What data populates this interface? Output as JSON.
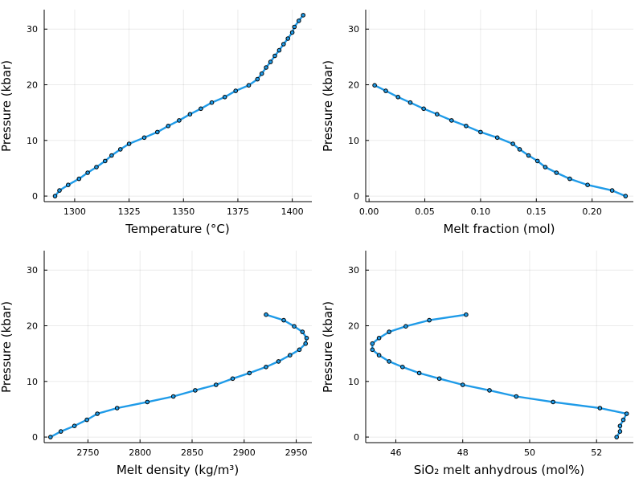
{
  "colors": {
    "series": "#1f9be8",
    "marker": "#000000"
  },
  "chart_data": [
    {
      "type": "line",
      "xlabel": "Temperature (°C)",
      "ylabel": "Pressure (kbar)",
      "xlim": [
        1286,
        1409
      ],
      "ylim": [
        -1,
        33.5
      ],
      "xticks": [
        1300,
        1325,
        1350,
        1375,
        1400
      ],
      "yticks": [
        0,
        10,
        20,
        30
      ],
      "grid": true,
      "points": [
        [
          1291,
          0
        ],
        [
          1293,
          1
        ],
        [
          1297,
          2
        ],
        [
          1302,
          3.1
        ],
        [
          1306,
          4.2
        ],
        [
          1310,
          5.2
        ],
        [
          1314,
          6.3
        ],
        [
          1317,
          7.3
        ],
        [
          1321,
          8.4
        ],
        [
          1325,
          9.4
        ],
        [
          1332,
          10.5
        ],
        [
          1338,
          11.5
        ],
        [
          1343,
          12.6
        ],
        [
          1348,
          13.6
        ],
        [
          1353,
          14.7
        ],
        [
          1358,
          15.7
        ],
        [
          1363,
          16.8
        ],
        [
          1369,
          17.8
        ],
        [
          1374,
          18.9
        ],
        [
          1380,
          19.9
        ],
        [
          1384,
          21
        ],
        [
          1386,
          22
        ],
        [
          1388,
          23.1
        ],
        [
          1390,
          24.1
        ],
        [
          1392,
          25.2
        ],
        [
          1394,
          26.2
        ],
        [
          1396,
          27.3
        ],
        [
          1398,
          28.3
        ],
        [
          1400,
          29.4
        ],
        [
          1401,
          30.4
        ],
        [
          1403,
          31.5
        ],
        [
          1405,
          32.5
        ]
      ]
    },
    {
      "type": "line",
      "xlabel": "Melt fraction (mol)",
      "ylabel": "Pressure (kbar)",
      "xlim": [
        -0.003,
        0.237
      ],
      "ylim": [
        -1,
        33.5
      ],
      "xticks": [
        0.0,
        0.05,
        0.1,
        0.15,
        0.2
      ],
      "xtick_labels": [
        "0.00",
        "0.05",
        "0.10",
        "0.15",
        "0.20"
      ],
      "yticks": [
        0,
        10,
        20,
        30
      ],
      "grid": true,
      "points": [
        [
          0.005,
          19.9
        ],
        [
          0.015,
          18.9
        ],
        [
          0.026,
          17.8
        ],
        [
          0.037,
          16.8
        ],
        [
          0.049,
          15.7
        ],
        [
          0.061,
          14.7
        ],
        [
          0.074,
          13.6
        ],
        [
          0.087,
          12.6
        ],
        [
          0.1,
          11.5
        ],
        [
          0.115,
          10.5
        ],
        [
          0.129,
          9.4
        ],
        [
          0.135,
          8.4
        ],
        [
          0.143,
          7.3
        ],
        [
          0.151,
          6.3
        ],
        [
          0.158,
          5.2
        ],
        [
          0.168,
          4.2
        ],
        [
          0.18,
          3.1
        ],
        [
          0.196,
          2
        ],
        [
          0.218,
          1
        ],
        [
          0.23,
          0
        ]
      ]
    },
    {
      "type": "line",
      "xlabel": "Melt density (kg/m³)",
      "ylabel": "Pressure (kbar)",
      "xlim": [
        2708,
        2965
      ],
      "ylim": [
        -1,
        33.5
      ],
      "xticks": [
        2750,
        2800,
        2850,
        2900,
        2950
      ],
      "yticks": [
        0,
        10,
        20,
        30
      ],
      "grid": true,
      "points": [
        [
          2714,
          0
        ],
        [
          2724,
          1
        ],
        [
          2737,
          2
        ],
        [
          2749,
          3.1
        ],
        [
          2759,
          4.2
        ],
        [
          2778,
          5.2
        ],
        [
          2807,
          6.3
        ],
        [
          2832,
          7.3
        ],
        [
          2853,
          8.4
        ],
        [
          2873,
          9.4
        ],
        [
          2889,
          10.5
        ],
        [
          2905,
          11.5
        ],
        [
          2921,
          12.6
        ],
        [
          2933,
          13.6
        ],
        [
          2944,
          14.7
        ],
        [
          2953,
          15.7
        ],
        [
          2959,
          16.8
        ],
        [
          2960,
          17.8
        ],
        [
          2956,
          18.9
        ],
        [
          2948,
          19.9
        ],
        [
          2938,
          21
        ],
        [
          2921,
          22
        ]
      ]
    },
    {
      "type": "line",
      "xlabel": "SiO₂ melt anhydrous (mol%)",
      "ylabel": "Pressure (kbar)",
      "xlim": [
        45.1,
        53.1
      ],
      "ylim": [
        -1,
        33.5
      ],
      "xticks": [
        46,
        48,
        50,
        52
      ],
      "yticks": [
        0,
        10,
        20,
        30
      ],
      "grid": true,
      "points": [
        [
          52.6,
          0
        ],
        [
          52.7,
          1
        ],
        [
          52.7,
          2
        ],
        [
          52.8,
          3.1
        ],
        [
          52.9,
          4.2
        ],
        [
          52.1,
          5.2
        ],
        [
          50.7,
          6.3
        ],
        [
          49.6,
          7.3
        ],
        [
          48.8,
          8.4
        ],
        [
          48,
          9.4
        ],
        [
          47.3,
          10.5
        ],
        [
          46.7,
          11.5
        ],
        [
          46.2,
          12.6
        ],
        [
          45.8,
          13.6
        ],
        [
          45.5,
          14.7
        ],
        [
          45.3,
          15.7
        ],
        [
          45.3,
          16.8
        ],
        [
          45.5,
          17.8
        ],
        [
          45.8,
          18.9
        ],
        [
          46.3,
          19.9
        ],
        [
          47,
          21
        ],
        [
          48.1,
          22
        ]
      ]
    }
  ]
}
